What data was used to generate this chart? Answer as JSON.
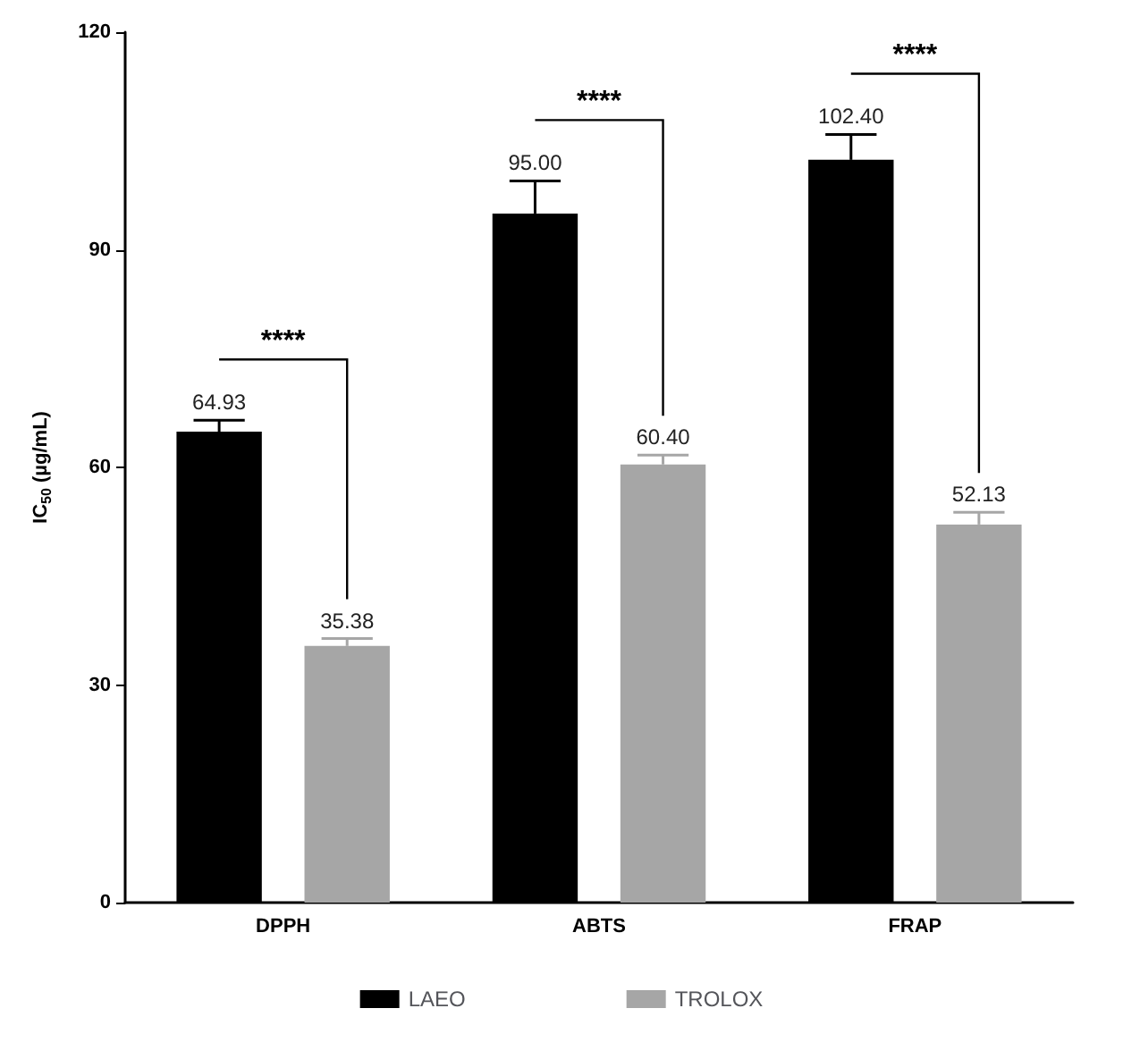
{
  "chart_data": {
    "type": "bar",
    "ylabel": "IC$_{50}$ (µg/mL)",
    "categories": [
      "DPPH",
      "ABTS",
      "FRAP"
    ],
    "series": [
      {
        "name": "LAEO",
        "color": "#000000",
        "values": [
          64.93,
          95.0,
          102.4
        ],
        "errors": [
          [
            64.93,
            66.5
          ],
          [
            95.0,
            99.5
          ],
          [
            102.4,
            105.9
          ]
        ],
        "value_labels": [
          "64.93",
          "95.00",
          "102.40"
        ]
      },
      {
        "name": "TROLOX",
        "color": "#a6a6a6",
        "values": [
          35.38,
          60.4,
          52.13
        ],
        "errors": [
          [
            35.38,
            36.4
          ],
          [
            60.4,
            61.7
          ],
          [
            52.13,
            53.8
          ]
        ],
        "value_labels": [
          "35.38",
          "60.40",
          "52.13"
        ]
      }
    ],
    "ylim": [
      0,
      120
    ],
    "yticks": [
      0,
      30,
      60,
      90,
      120
    ],
    "grid": false,
    "legend": "bottom",
    "annotations": [
      "****",
      "****",
      "****"
    ]
  }
}
